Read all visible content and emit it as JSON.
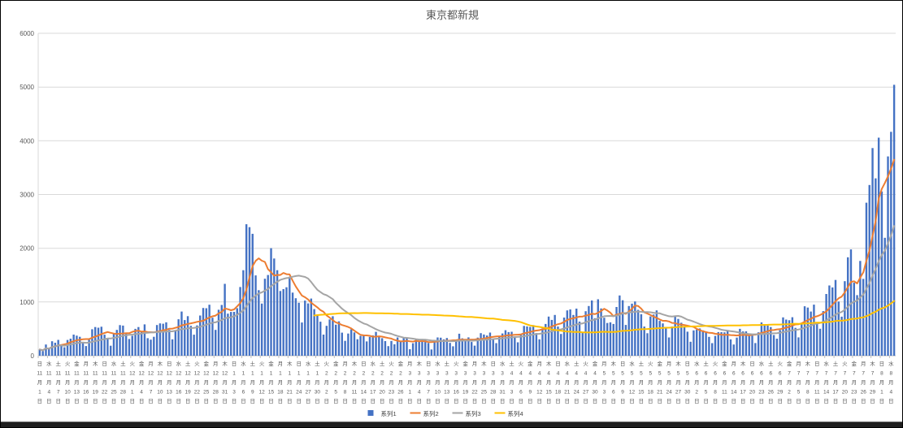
{
  "chart_data": {
    "type": "bar",
    "combo_note": "bar series 1 plus three overlaid line series (moving averages)",
    "title": "東京都新規",
    "background": "#FFFFFF",
    "grid_color": "#D9D9D9",
    "axis_color": "#BFBFBF",
    "label_color": "#595959",
    "y_axis": {
      "min": 0,
      "max": 6000,
      "tick_step": 1000,
      "tick_labels": [
        "0",
        "1000",
        "2000",
        "3000",
        "4000",
        "5000",
        "6000"
      ],
      "grid": true
    },
    "x_axis": {
      "start_date": "2020-11-01",
      "end_date": "2021-08-05",
      "tick_every_days": 3,
      "tick_label_pattern": "{weekday}{month}月{day}日 (vertical text)",
      "weekday_chars": [
        "日",
        "月",
        "火",
        "水",
        "木",
        "金",
        "土"
      ],
      "month_suffix": "月",
      "day_suffix": "日",
      "months": [
        {
          "label": "11",
          "days": 30
        },
        {
          "label": "12",
          "days": 31
        },
        {
          "label": "1",
          "days": 31
        },
        {
          "label": "2",
          "days": 28
        },
        {
          "label": "3",
          "days": 31
        },
        {
          "label": "4",
          "days": 30
        },
        {
          "label": "5",
          "days": 31
        },
        {
          "label": "6",
          "days": 30
        },
        {
          "label": "7",
          "days": 31
        },
        {
          "label": "8",
          "days": 5
        }
      ]
    },
    "series": [
      {
        "name": "系列1",
        "type": "bar",
        "color": "#4472C4",
        "values": [
          116,
          87,
          209,
          122,
          269,
          242,
          294,
          189,
          157,
          293,
          317,
          393,
          374,
          352,
          255,
          180,
          298,
          493,
          534,
          522,
          539,
          391,
          314,
          186,
          401,
          481,
          570,
          561,
          418,
          311,
          372,
          500,
          533,
          449,
          584,
          327,
          299,
          352,
          572,
          602,
          595,
          621,
          480,
          305,
          460,
          678,
          822,
          664,
          736,
          556,
          392,
          563,
          748,
          888,
          884,
          949,
          708,
          481,
          856,
          944,
          1337,
          783,
          814,
          816,
          884,
          1278,
          1591,
          2447,
          2392,
          2268,
          1494,
          1219,
          970,
          1433,
          1502,
          2001,
          1809,
          1592,
          1204,
          1240,
          1274,
          1471,
          1175,
          1070,
          986,
          618,
          1026,
          973,
          1064,
          868,
          769,
          633,
          393,
          556,
          676,
          734,
          577,
          639,
          429,
          276,
          412,
          491,
          434,
          307,
          369,
          371,
          266,
          350,
          378,
          445,
          353,
          327,
          272,
          178,
          275,
          213,
          340,
          270,
          337,
          329,
          121,
          232,
          316,
          279,
          301,
          293,
          237,
          116,
          290,
          340,
          335,
          304,
          330,
          239,
          175,
          300,
          409,
          323,
          303,
          342,
          256,
          187,
          337,
          420,
          394,
          376,
          430,
          313,
          234,
          364,
          414,
          475,
          440,
          446,
          355,
          249,
          399,
          555,
          545,
          537,
          570,
          421,
          306,
          510,
          591,
          729,
          667,
          759,
          543,
          405,
          711,
          843,
          861,
          759,
          876,
          635,
          425,
          828,
          925,
          1027,
          698,
          1050,
          879,
          708,
          609,
          621,
          591,
          907,
          1121,
          1032,
          573,
          925,
          969,
          1010,
          854,
          772,
          542,
          419,
          732,
          766,
          843,
          649,
          602,
          535,
          340,
          542,
          743,
          684,
          614,
          539,
          448,
          260,
          471,
          487,
          508,
          472,
          436,
          351,
          235,
          369,
          440,
          439,
          435,
          467,
          304,
          209,
          337,
          501,
          452,
          453,
          388,
          376,
          236,
          435,
          619,
          570,
          562,
          534,
          386,
          317,
          476,
          714,
          673,
          660,
          716,
          518,
          342,
          593,
          920,
          896,
          822,
          950,
          614,
          502,
          830,
          1149,
          1308,
          1271,
          1410,
          1008,
          727,
          1387,
          1832,
          1979,
          1359,
          1128,
          1763,
          1429,
          2848,
          3177,
          3865,
          3300,
          4058,
          3058,
          2195,
          3709,
          4166,
          5042
        ]
      },
      {
        "name": "系列2",
        "type": "line",
        "color": "#ED7D31",
        "derivation": "moving average of 系列1",
        "window": 7,
        "min_points": 1
      },
      {
        "name": "系列3",
        "type": "line",
        "color": "#A5A5A5",
        "derivation": "moving average of 系列1",
        "window": 21,
        "min_points": 1
      },
      {
        "name": "系列4",
        "type": "line",
        "color": "#FFC000",
        "derivation": "moving average of 系列1",
        "window": 90,
        "min_points": 90
      }
    ],
    "legend": {
      "position": "bottom-center",
      "items": [
        "系列1",
        "系列2",
        "系列3",
        "系列4"
      ]
    }
  }
}
